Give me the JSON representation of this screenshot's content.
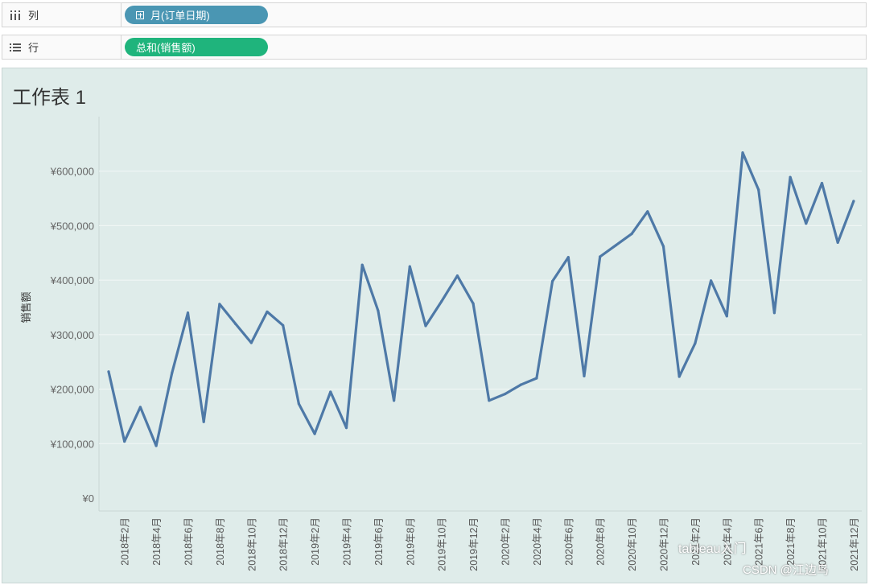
{
  "shelves": {
    "columns": {
      "label": "列",
      "pill": "月(订单日期)"
    },
    "rows": {
      "label": "行",
      "pill": "总和(销售额)"
    }
  },
  "sheet": {
    "title": "工作表 1"
  },
  "watermark": {
    "line1": "tableau入门",
    "line2": "CSDN @江边鸟"
  },
  "colors": {
    "line": "#4e79a7",
    "background": "#dfecea",
    "columns_pill": "#4a96b3",
    "rows_pill": "#1fb47c"
  },
  "chart_data": {
    "type": "line",
    "ylabel": "销售额",
    "ylim": [
      0,
      700000
    ],
    "yticks": [
      0,
      100000,
      200000,
      300000,
      400000,
      500000,
      600000
    ],
    "ytick_labels": [
      "¥0",
      "¥100,000",
      "¥200,000",
      "¥300,000",
      "¥400,000",
      "¥500,000",
      "¥600,000"
    ],
    "x": [
      "2018年1月",
      "2018年2月",
      "2018年3月",
      "2018年4月",
      "2018年5月",
      "2018年6月",
      "2018年7月",
      "2018年8月",
      "2018年9月",
      "2018年10月",
      "2018年11月",
      "2018年12月",
      "2019年1月",
      "2019年2月",
      "2019年3月",
      "2019年4月",
      "2019年5月",
      "2019年6月",
      "2019年7月",
      "2019年8月",
      "2019年9月",
      "2019年10月",
      "2019年11月",
      "2019年12月",
      "2020年1月",
      "2020年2月",
      "2020年3月",
      "2020年4月",
      "2020年5月",
      "2020年6月",
      "2020年7月",
      "2020年8月",
      "2020年9月",
      "2020年10月",
      "2020年11月",
      "2020年12月",
      "2021年1月",
      "2021年2月",
      "2021年3月",
      "2021年4月",
      "2021年5月",
      "2021年6月",
      "2021年7月",
      "2021年8月",
      "2021年9月",
      "2021年10月",
      "2021年11月",
      "2021年12月"
    ],
    "x_tick_labels": [
      "2018年2月",
      "2018年4月",
      "2018年6月",
      "2018年8月",
      "2018年10月",
      "2018年12月",
      "2019年2月",
      "2019年4月",
      "2019年6月",
      "2019年8月",
      "2019年10月",
      "2019年12月",
      "2020年2月",
      "2020年4月",
      "2020年6月",
      "2020年8月",
      "2020年10月",
      "2020年12月",
      "2021年2月",
      "2021年4月",
      "2021年6月",
      "2021年8月",
      "2021年10月",
      "2021年12月"
    ],
    "values": [
      232000,
      104000,
      167000,
      96000,
      230000,
      340000,
      140000,
      356000,
      320000,
      285000,
      342000,
      317000,
      173000,
      118000,
      195000,
      129000,
      428000,
      344000,
      179000,
      425000,
      316000,
      361000,
      408000,
      357000,
      179000,
      191000,
      208000,
      220000,
      398000,
      442000,
      224000,
      443000,
      464000,
      485000,
      526000,
      462000,
      223000,
      284000,
      399000,
      334000,
      634000,
      566000,
      340000,
      589000,
      504000,
      578000,
      469000,
      545000
    ]
  }
}
